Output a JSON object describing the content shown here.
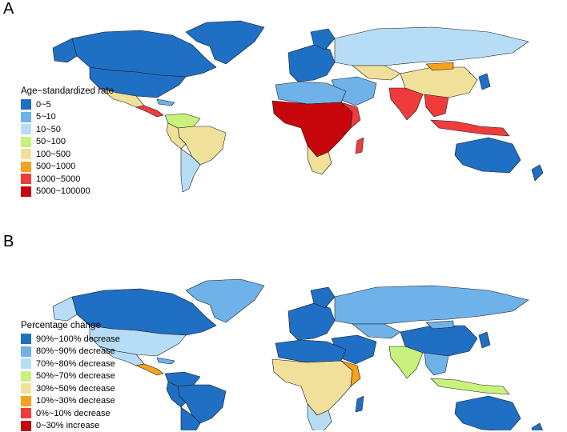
{
  "panels": [
    {
      "letter": "A",
      "legend_title": "Age−standardized rate",
      "legend": [
        {
          "label": "0~5",
          "color": "#1f6fc4"
        },
        {
          "label": "5~10",
          "color": "#6fb2ea"
        },
        {
          "label": "10~50",
          "color": "#b7ddf6"
        },
        {
          "label": "50~100",
          "color": "#c8f27d"
        },
        {
          "label": "100~500",
          "color": "#f0e09a"
        },
        {
          "label": "500~1000",
          "color": "#f7a21b"
        },
        {
          "label": "1000~5000",
          "color": "#ef3b3b"
        },
        {
          "label": "5000~100000",
          "color": "#c8070d"
        }
      ]
    },
    {
      "letter": "B",
      "legend_title": "Percentage change",
      "legend": [
        {
          "label": "90%~100% decrease",
          "color": "#1f6fc4"
        },
        {
          "label": "80%~90% decrease",
          "color": "#6fb2ea"
        },
        {
          "label": "70%~80% decrease",
          "color": "#b7ddf6"
        },
        {
          "label": "50%~70% decrease",
          "color": "#c8f27d"
        },
        {
          "label": "30%~50% decrease",
          "color": "#f0e09a"
        },
        {
          "label": "10%~30% decrease",
          "color": "#f7a21b"
        },
        {
          "label": "0%~10% decrease",
          "color": "#ef3b3b"
        },
        {
          "label": "0~30% increase",
          "color": "#c8070d"
        }
      ]
    }
  ]
}
